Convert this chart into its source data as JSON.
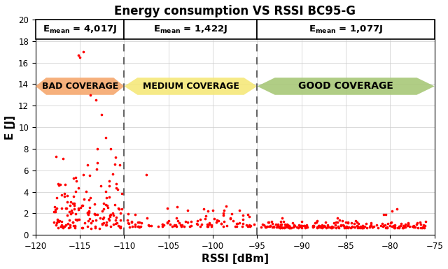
{
  "title": "Energy consumption VS RSSI BC95-G",
  "xlabel": "RSSI [dBm]",
  "ylabel": "E [J]",
  "xlim": [
    -120,
    -75
  ],
  "ylim": [
    0,
    20
  ],
  "xticks": [
    -120,
    -115,
    -110,
    -105,
    -100,
    -95,
    -90,
    -85,
    -80,
    -75
  ],
  "yticks": [
    0,
    2,
    4,
    6,
    8,
    10,
    12,
    14,
    16,
    18,
    20
  ],
  "vline1": -110,
  "vline2": -95,
  "bad_label": "BAD COVERAGE",
  "med_label": "MEDIUM COVERAGE",
  "good_label": "GOOD COVERAGE",
  "bad_color": "#F5A86E",
  "med_color": "#F5E87A",
  "good_color": "#A8C878",
  "dot_color": "#FF0000",
  "background_color": "#ffffff",
  "seed": 42
}
